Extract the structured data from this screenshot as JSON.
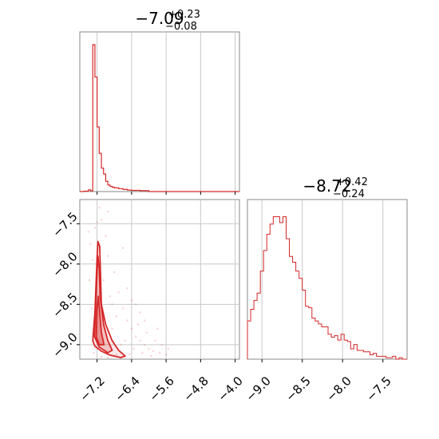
{
  "colors": {
    "accent": "#d62728",
    "grid": "#c8c8c8",
    "frame": "#888888"
  },
  "chart_data": [
    {
      "type": "histogram",
      "panel": "param1-marginal",
      "title": {
        "median": "−7.09",
        "upper": "+0.23",
        "lower": "−0.08"
      },
      "xlim": [
        -7.6,
        -3.9
      ],
      "grid_x": [
        -7.2,
        -6.4,
        -5.6,
        -4.8,
        -4.0
      ],
      "bin_edges": [
        -7.6,
        -7.5,
        -7.4,
        -7.35,
        -7.3,
        -7.25,
        -7.2,
        -7.15,
        -7.1,
        -7.05,
        -7.0,
        -6.95,
        -6.9,
        -6.85,
        -6.8,
        -6.7,
        -6.6,
        -6.5,
        -6.4,
        -6.2,
        -6.0,
        -5.6,
        -3.9
      ],
      "counts": [
        0,
        0.3,
        1.2,
        0.5,
        100,
        78,
        44,
        26,
        16,
        12,
        7,
        4.5,
        3.5,
        3,
        2.5,
        2,
        1.5,
        1,
        0.8,
        0.6,
        0,
        0
      ],
      "ymax": 100
    },
    {
      "type": "histogram",
      "panel": "param2-marginal",
      "title": {
        "median": "−8.72",
        "upper": "+0.42",
        "lower": "−0.24"
      },
      "xlim": [
        -9.18,
        -7.2
      ],
      "xticks": [
        "−9.0",
        "−8.5",
        "−8.0",
        "−7.5"
      ],
      "xtick_values": [
        -9.0,
        -8.5,
        -8.0,
        -7.5
      ],
      "bin_edges": [
        -9.18,
        -9.14,
        -9.1,
        -9.06,
        -9.02,
        -8.98,
        -8.94,
        -8.9,
        -8.86,
        -8.82,
        -8.78,
        -8.74,
        -8.7,
        -8.66,
        -8.62,
        -8.58,
        -8.54,
        -8.5,
        -8.46,
        -8.42,
        -8.38,
        -8.34,
        -8.3,
        -8.26,
        -8.22,
        -8.18,
        -8.14,
        -8.1,
        -8.06,
        -8.02,
        -7.98,
        -7.94,
        -7.9,
        -7.86,
        -7.82,
        -7.78,
        -7.74,
        -7.7,
        -7.66,
        -7.62,
        -7.58,
        -7.54,
        -7.5,
        -7.46,
        -7.42,
        -7.38,
        -7.34,
        -7.3,
        -7.26,
        -7.22,
        -7.2
      ],
      "counts": [
        0.26,
        0.34,
        0.4,
        0.45,
        0.6,
        0.74,
        0.85,
        0.92,
        0.97,
        0.97,
        0.93,
        0.97,
        0.82,
        0.7,
        0.66,
        0.6,
        0.55,
        0.47,
        0.36,
        0.35,
        0.28,
        0.26,
        0.24,
        0.22,
        0.22,
        0.17,
        0.15,
        0.16,
        0.13,
        0.17,
        0.13,
        0.12,
        0.07,
        0.1,
        0.06,
        0.06,
        0.05,
        0.05,
        0.03,
        0.04,
        0.02,
        0.02,
        0.02,
        0.01,
        0.01,
        0.02,
        0.0,
        0.01,
        0.0,
        0.0
      ],
      "ymax": 1.0
    },
    {
      "type": "scatter-contour",
      "panel": "joint",
      "xlim": [
        -7.6,
        -3.9
      ],
      "ylim": [
        -9.18,
        -7.2
      ],
      "xticks": [
        "−7.2",
        "−6.4",
        "−5.6",
        "−4.8",
        "−4.0"
      ],
      "xtick_values": [
        -7.2,
        -6.4,
        -5.6,
        -4.8,
        -4.0
      ],
      "yticks": [
        "−7.5",
        "−8.0",
        "−8.5",
        "−9.0"
      ],
      "ytick_values": [
        -7.5,
        -8.0,
        -8.5,
        -9.0
      ],
      "contours": [
        [
          [
            -7.3,
            -8.95
          ],
          [
            -7.25,
            -8.6
          ],
          [
            -7.22,
            -8.2
          ],
          [
            -7.2,
            -7.92
          ],
          [
            -7.18,
            -7.72
          ],
          [
            -7.14,
            -7.78
          ],
          [
            -7.12,
            -8.1
          ],
          [
            -7.1,
            -8.5
          ],
          [
            -7.0,
            -8.75
          ],
          [
            -6.85,
            -8.95
          ],
          [
            -6.7,
            -9.07
          ],
          [
            -6.55,
            -9.14
          ],
          [
            -6.65,
            -9.16
          ],
          [
            -6.9,
            -9.13
          ],
          [
            -7.1,
            -9.08
          ],
          [
            -7.25,
            -9.02
          ]
        ],
        [
          [
            -7.26,
            -8.9
          ],
          [
            -7.23,
            -8.5
          ],
          [
            -7.2,
            -8.1
          ],
          [
            -7.18,
            -7.9
          ],
          [
            -7.15,
            -8.05
          ],
          [
            -7.13,
            -8.4
          ],
          [
            -7.05,
            -8.75
          ],
          [
            -6.95,
            -8.95
          ],
          [
            -6.85,
            -9.07
          ],
          [
            -6.95,
            -9.1
          ],
          [
            -7.15,
            -9.03
          ]
        ],
        [
          [
            -7.22,
            -8.9
          ],
          [
            -7.2,
            -8.55
          ],
          [
            -7.17,
            -8.4
          ],
          [
            -7.14,
            -8.6
          ],
          [
            -7.1,
            -8.85
          ],
          [
            -7.04,
            -9.0
          ],
          [
            -7.15,
            -9.0
          ]
        ]
      ],
      "points": [
        [
          -7.25,
          -7.55
        ],
        [
          -7.2,
          -7.48
        ],
        [
          -7.1,
          -7.45
        ],
        [
          -7.35,
          -7.75
        ],
        [
          -7.3,
          -7.95
        ],
        [
          -7.0,
          -7.65
        ],
        [
          -6.95,
          -7.9
        ],
        [
          -6.8,
          -8.1
        ],
        [
          -6.7,
          -8.35
        ],
        [
          -6.6,
          -8.55
        ],
        [
          -6.5,
          -8.7
        ],
        [
          -6.4,
          -8.8
        ],
        [
          -6.3,
          -8.9
        ],
        [
          -6.2,
          -8.95
        ],
        [
          -6.1,
          -9.0
        ],
        [
          -6.0,
          -9.05
        ],
        [
          -5.9,
          -9.08
        ],
        [
          -5.75,
          -9.1
        ],
        [
          -5.6,
          -9.12
        ],
        [
          -6.9,
          -8.4
        ],
        [
          -6.75,
          -8.65
        ],
        [
          -6.55,
          -8.95
        ],
        [
          -6.35,
          -9.05
        ],
        [
          -6.15,
          -9.1
        ],
        [
          -7.05,
          -8.2
        ],
        [
          -6.85,
          -8.8
        ],
        [
          -6.65,
          -9.0
        ],
        [
          -6.45,
          -9.12
        ],
        [
          -6.25,
          -8.75
        ],
        [
          -6.05,
          -8.85
        ],
        [
          -5.85,
          -8.95
        ],
        [
          -5.7,
          -9.0
        ],
        [
          -5.95,
          -9.14
        ],
        [
          -7.4,
          -7.6
        ],
        [
          -7.38,
          -8.2
        ],
        [
          -7.15,
          -7.3
        ],
        [
          -6.95,
          -7.35
        ],
        [
          -6.6,
          -7.8
        ],
        [
          -6.4,
          -8.45
        ],
        [
          -6.2,
          -8.6
        ],
        [
          -6.75,
          -9.12
        ],
        [
          -7.32,
          -8.55
        ],
        [
          -7.28,
          -9.1
        ],
        [
          -6.5,
          -8.3
        ],
        [
          -6.3,
          -8.5
        ],
        [
          -6.1,
          -8.7
        ],
        [
          -5.8,
          -8.8
        ],
        [
          -7.1,
          -9.15
        ],
        [
          -6.95,
          -9.16
        ],
        [
          -5.55,
          -9.05
        ],
        [
          -6.85,
          -8.5
        ]
      ]
    }
  ]
}
